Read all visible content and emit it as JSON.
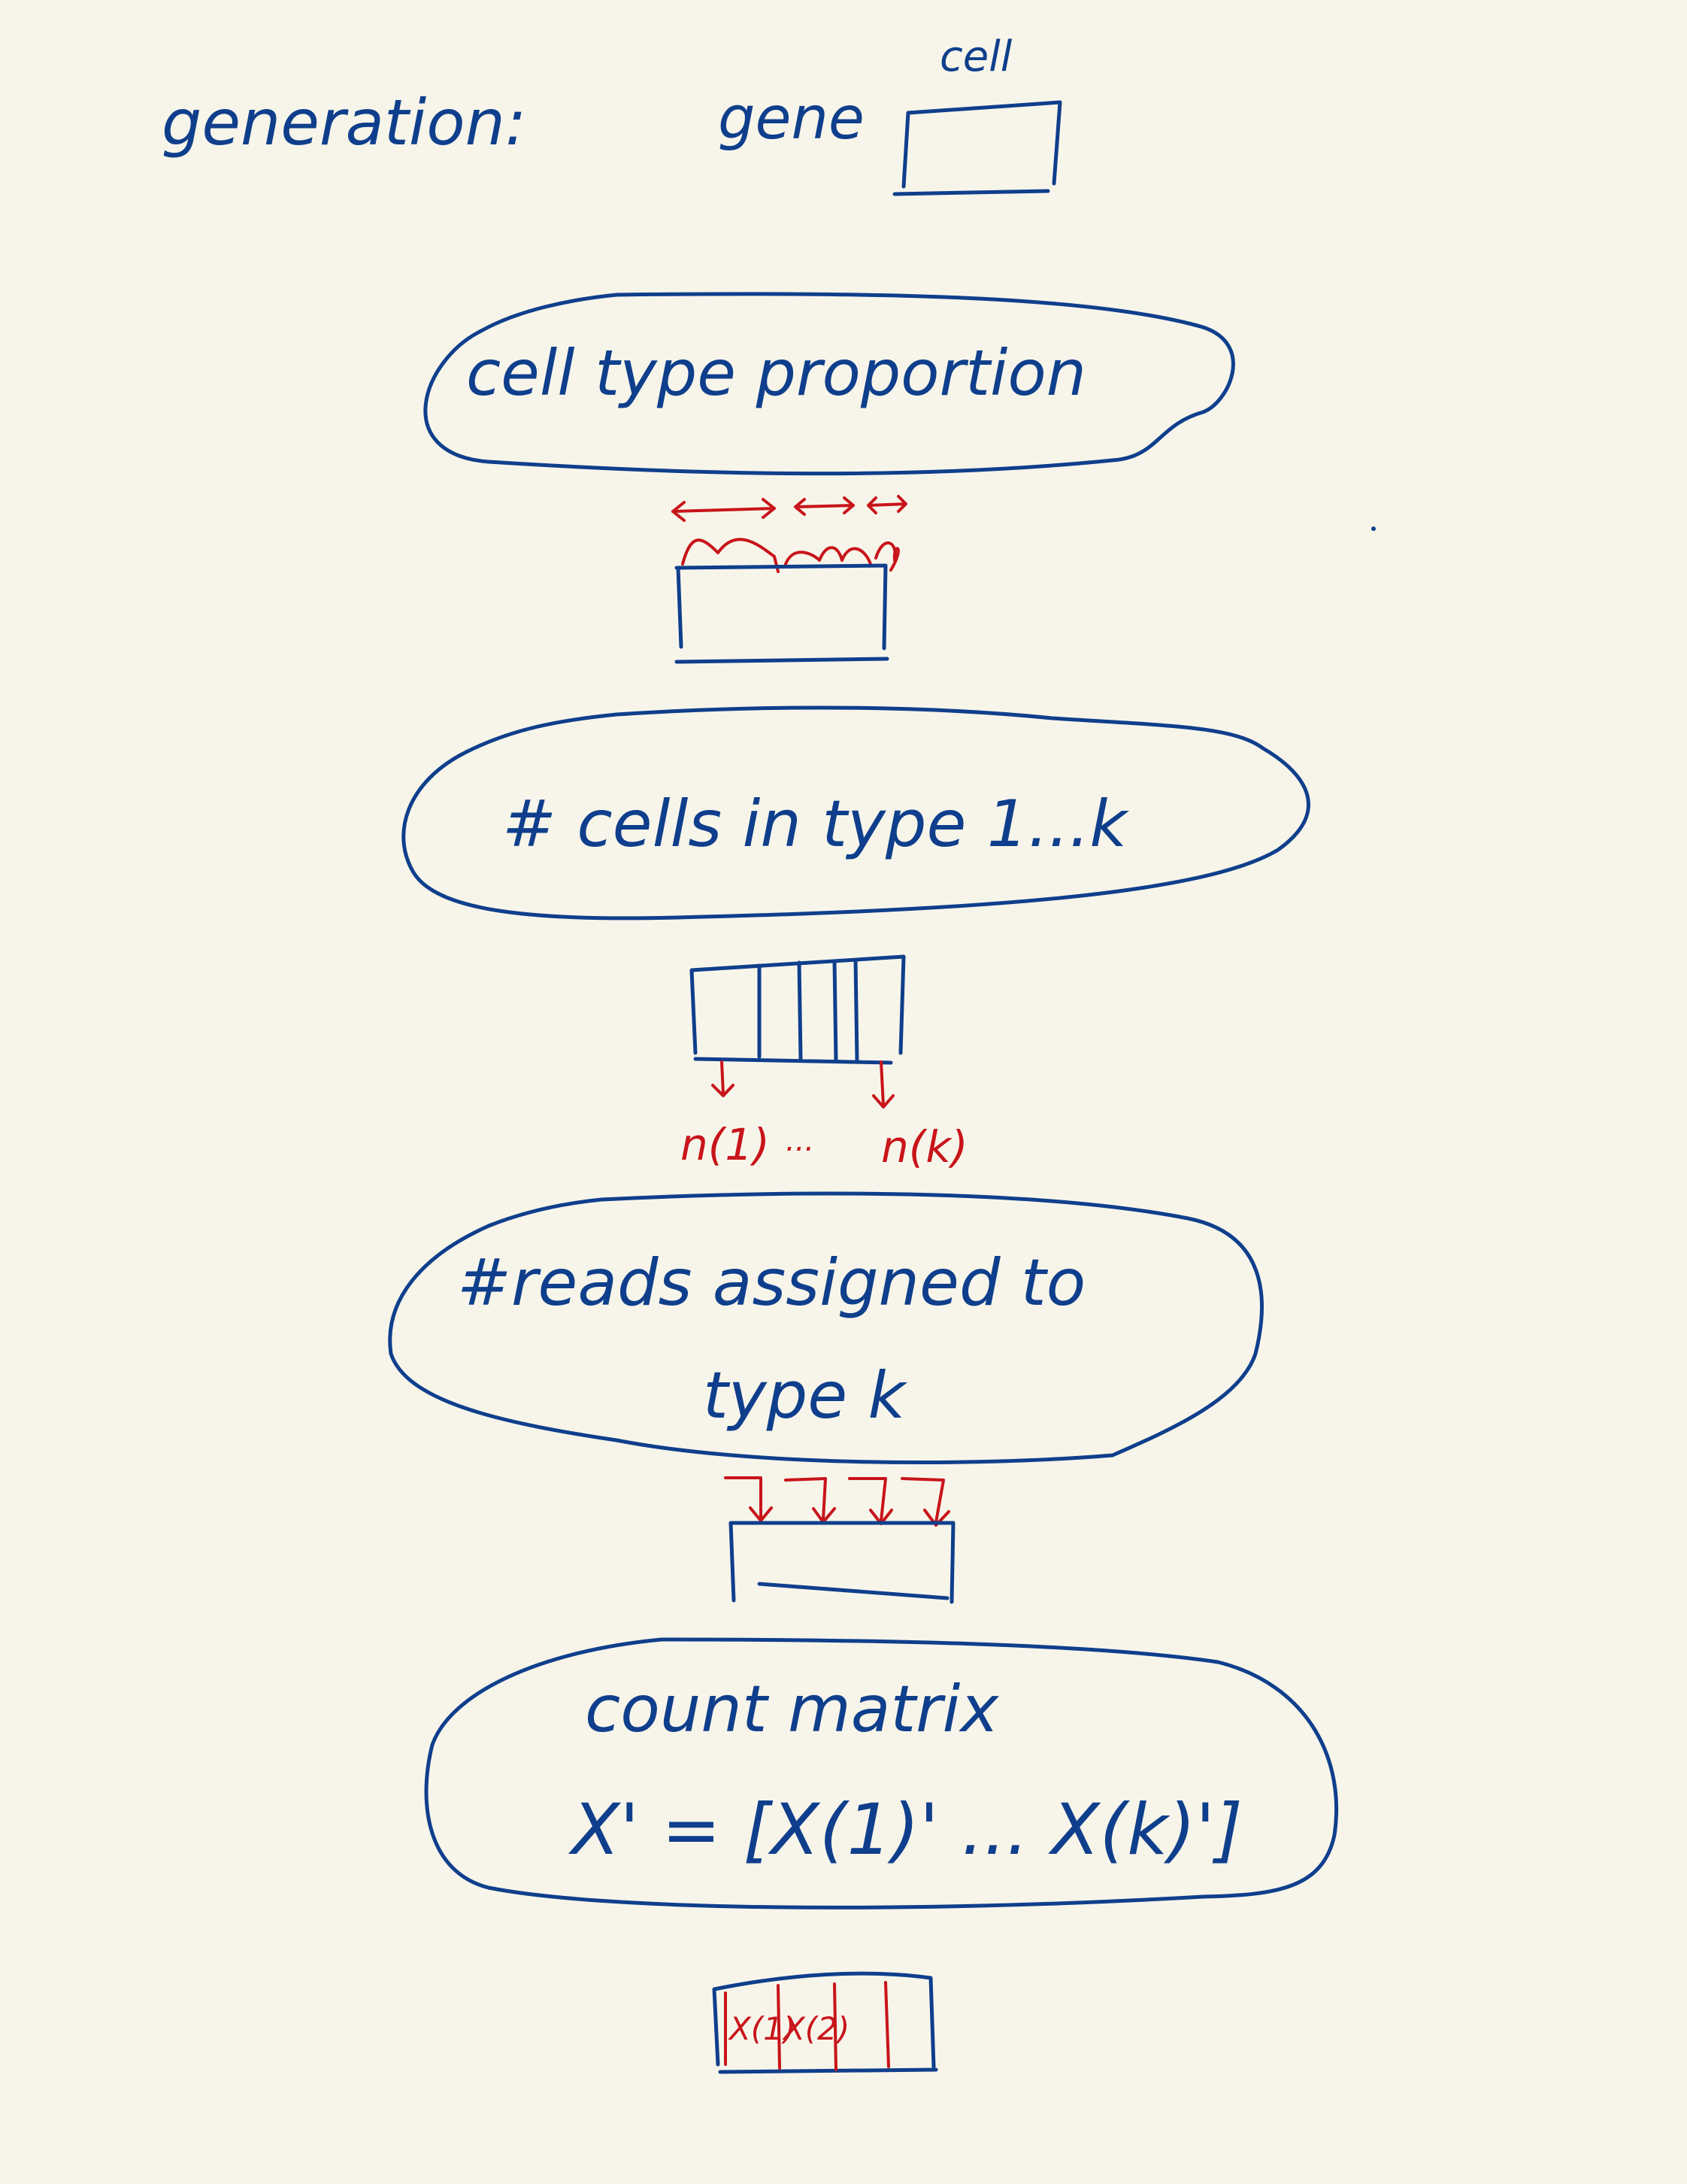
{
  "header": {
    "title": "generation:",
    "axis_row_label": "gene",
    "axis_col_label": "cell"
  },
  "steps": [
    {
      "label": "cell type proportion"
    },
    {
      "label": "# cells in type 1...k"
    },
    {
      "label_line1": "#reads assigned to",
      "label_line2": "type k"
    },
    {
      "label_line1": "count matrix",
      "label_line2": "X' = [X(1)' ... X(k)']"
    }
  ],
  "annotations": {
    "n_first": "n(1)",
    "n_dots": "...",
    "n_last": "n(k)",
    "block_1": "X(1)",
    "block_2": "X(2)"
  },
  "colors": {
    "background": "#f7f5ea",
    "ink_blue": "#0f3f8c",
    "ink_red": "#c8141a"
  }
}
